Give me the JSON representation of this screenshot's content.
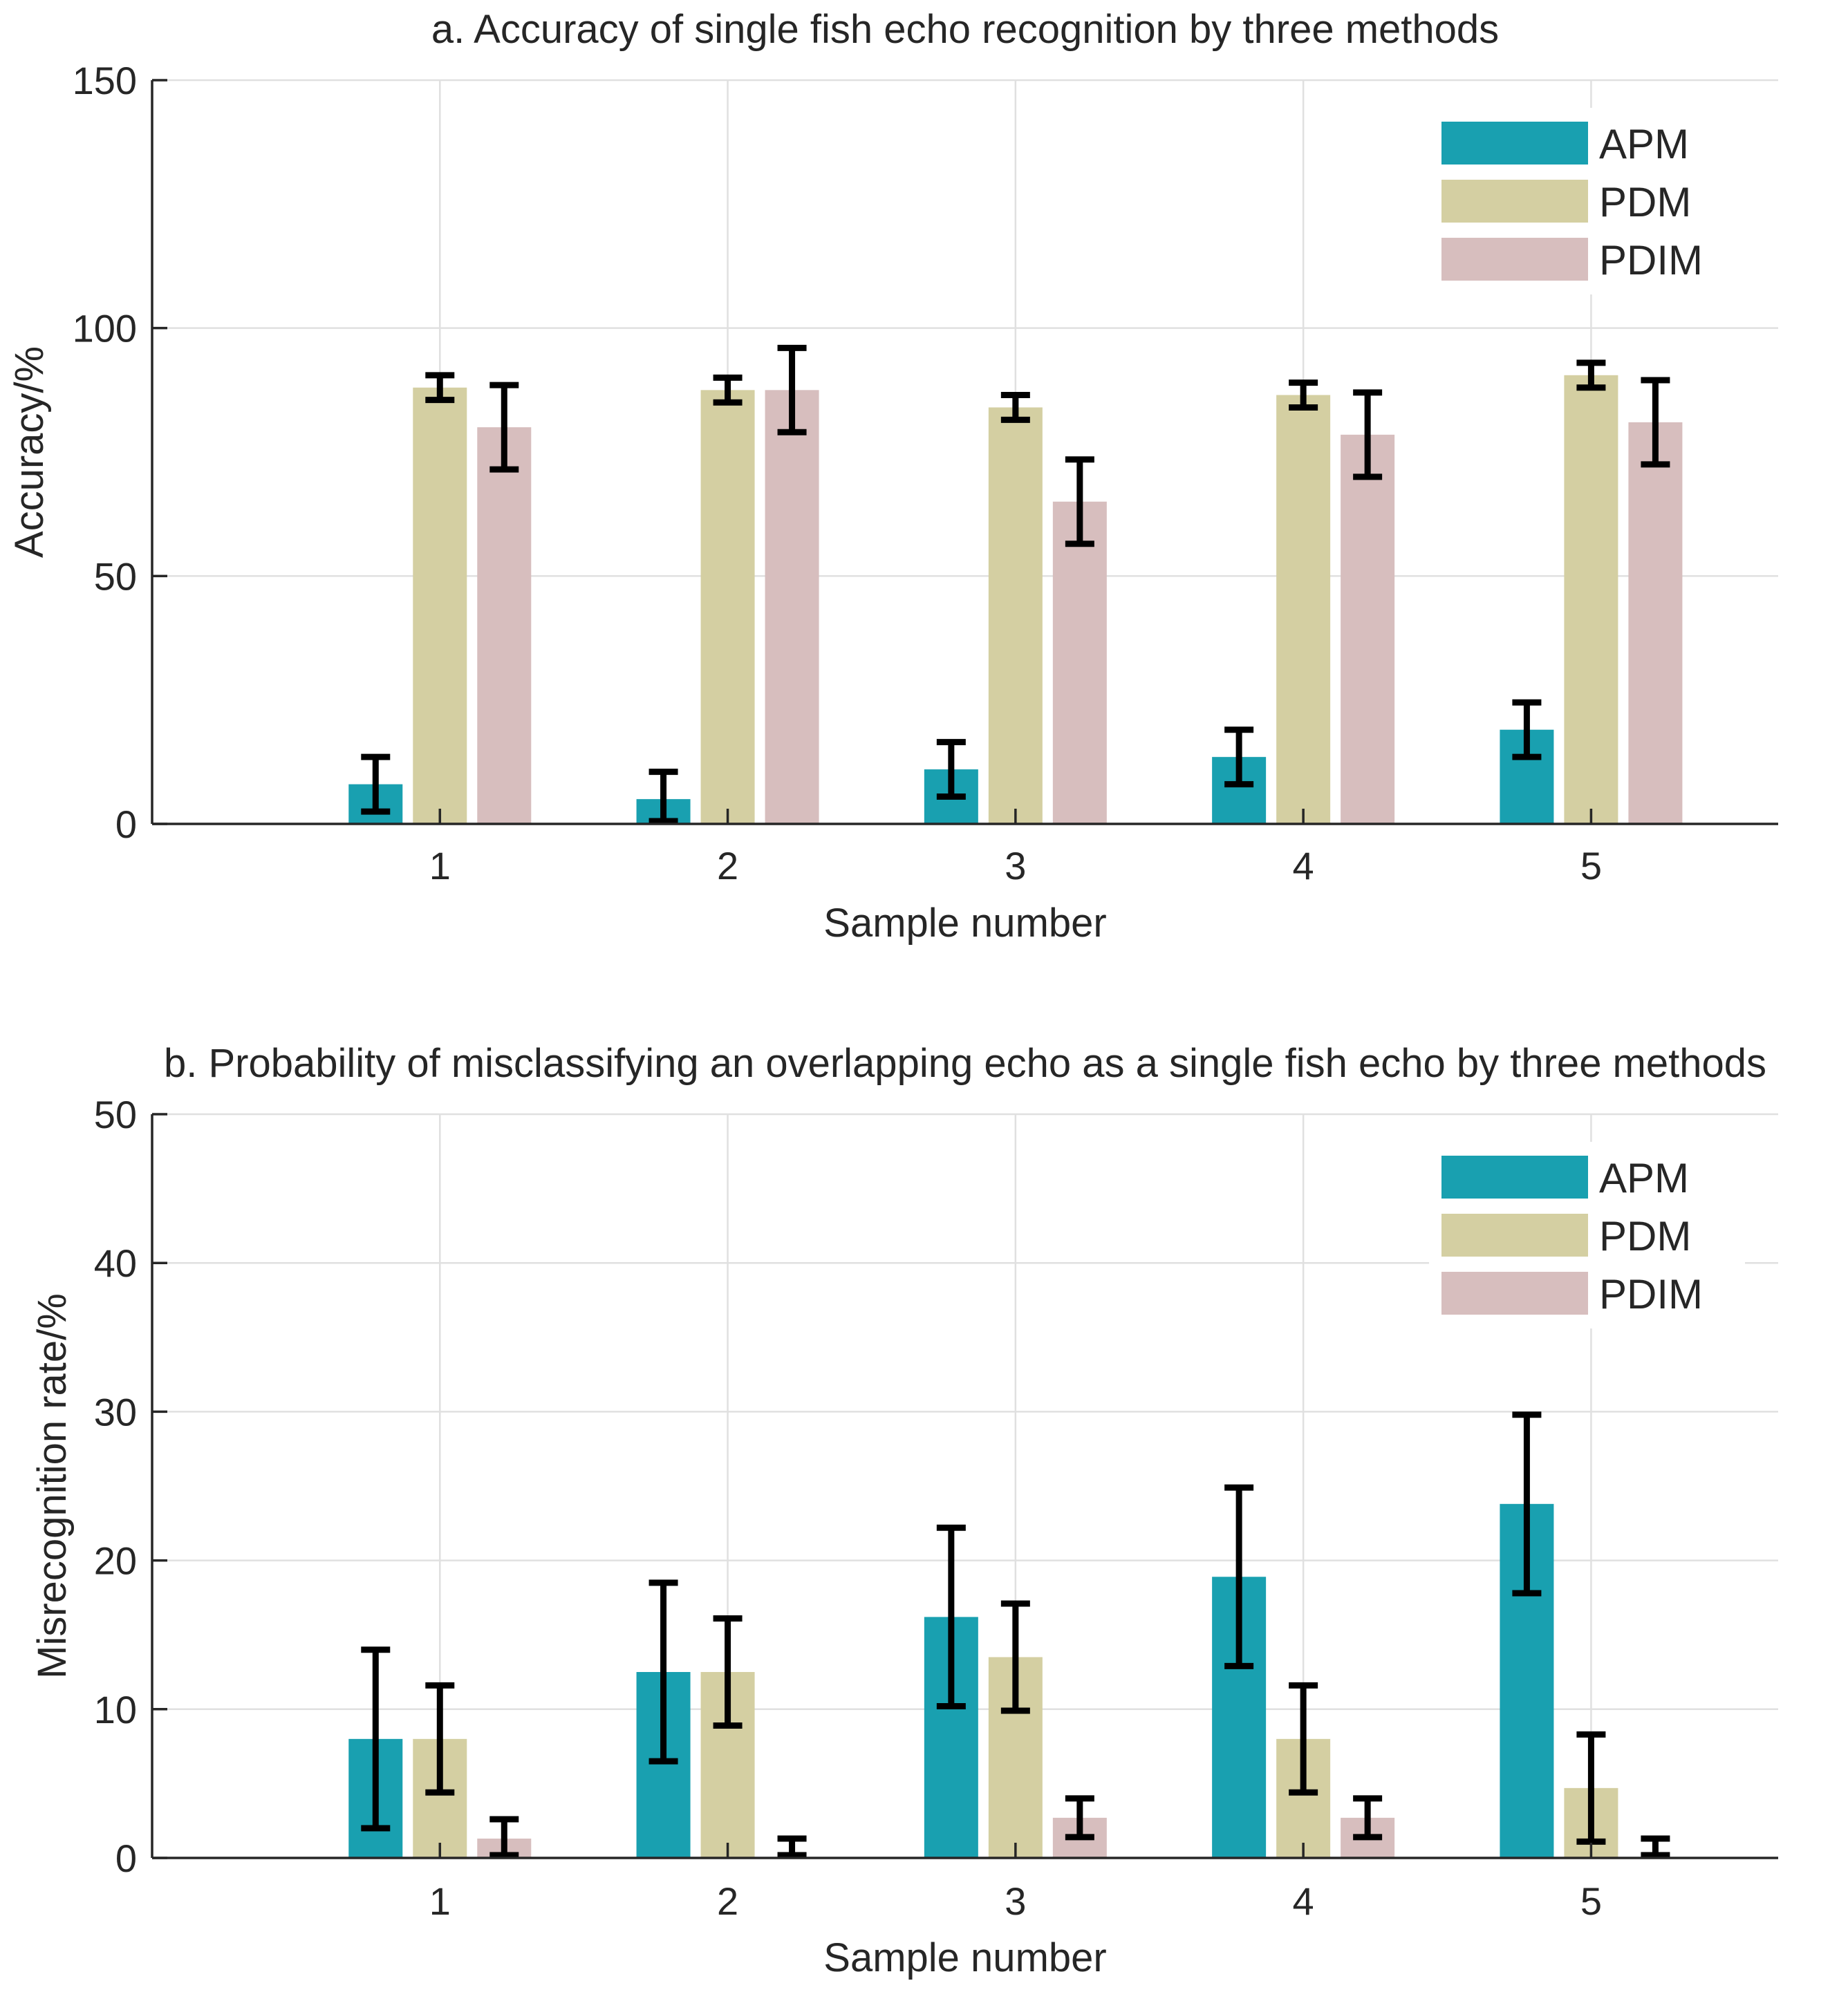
{
  "chart_data": [
    {
      "type": "bar",
      "title": "a. Accuracy of single fish echo recognition by three methods",
      "xlabel": "Sample number",
      "ylabel": "Accuracy/%",
      "ylim": [
        0,
        150
      ],
      "yticks": [
        0,
        50,
        100,
        150
      ],
      "grid": true,
      "legend_position": "top-right",
      "categories": [
        "1",
        "2",
        "3",
        "4",
        "5"
      ],
      "series": [
        {
          "name": "APM",
          "color": "#19a0b0",
          "values": [
            8,
            5,
            11,
            13.5,
            19
          ],
          "errors": [
            5.5,
            5.5,
            5.5,
            5.5,
            5.5
          ]
        },
        {
          "name": "PDM",
          "color": "#d4cfa2",
          "values": [
            88,
            87.5,
            84,
            86.5,
            90.5
          ],
          "errors": [
            2.5,
            2.5,
            2.5,
            2.5,
            2.5
          ]
        },
        {
          "name": "PDIM",
          "color": "#d7bebe",
          "values": [
            80,
            87.5,
            65,
            78.5,
            81
          ],
          "errors": [
            8.5,
            8.5,
            8.5,
            8.5,
            8.5
          ]
        }
      ]
    },
    {
      "type": "bar",
      "title": "b. Probability of misclassifying an overlapping echo as a single fish echo by three methods",
      "xlabel": "Sample number",
      "ylabel": "Misrecognition rate/%",
      "ylim": [
        0,
        50
      ],
      "yticks": [
        0,
        10,
        20,
        30,
        40,
        50
      ],
      "grid": true,
      "legend_position": "top-right",
      "categories": [
        "1",
        "2",
        "3",
        "4",
        "5"
      ],
      "series": [
        {
          "name": "APM",
          "color": "#19a0b0",
          "values": [
            8,
            12.5,
            16.2,
            18.9,
            23.8
          ],
          "errors": [
            6,
            6,
            6,
            6,
            6
          ]
        },
        {
          "name": "PDM",
          "color": "#d4cfa2",
          "values": [
            8,
            12.5,
            13.5,
            8,
            4.7
          ],
          "errors": [
            3.6,
            3.6,
            3.6,
            3.6,
            3.6
          ]
        },
        {
          "name": "PDIM",
          "color": "#d7bebe",
          "values": [
            1.3,
            0,
            2.7,
            2.7,
            0
          ],
          "errors": [
            1.3,
            1.3,
            1.3,
            1.3,
            1.3
          ]
        }
      ]
    }
  ]
}
